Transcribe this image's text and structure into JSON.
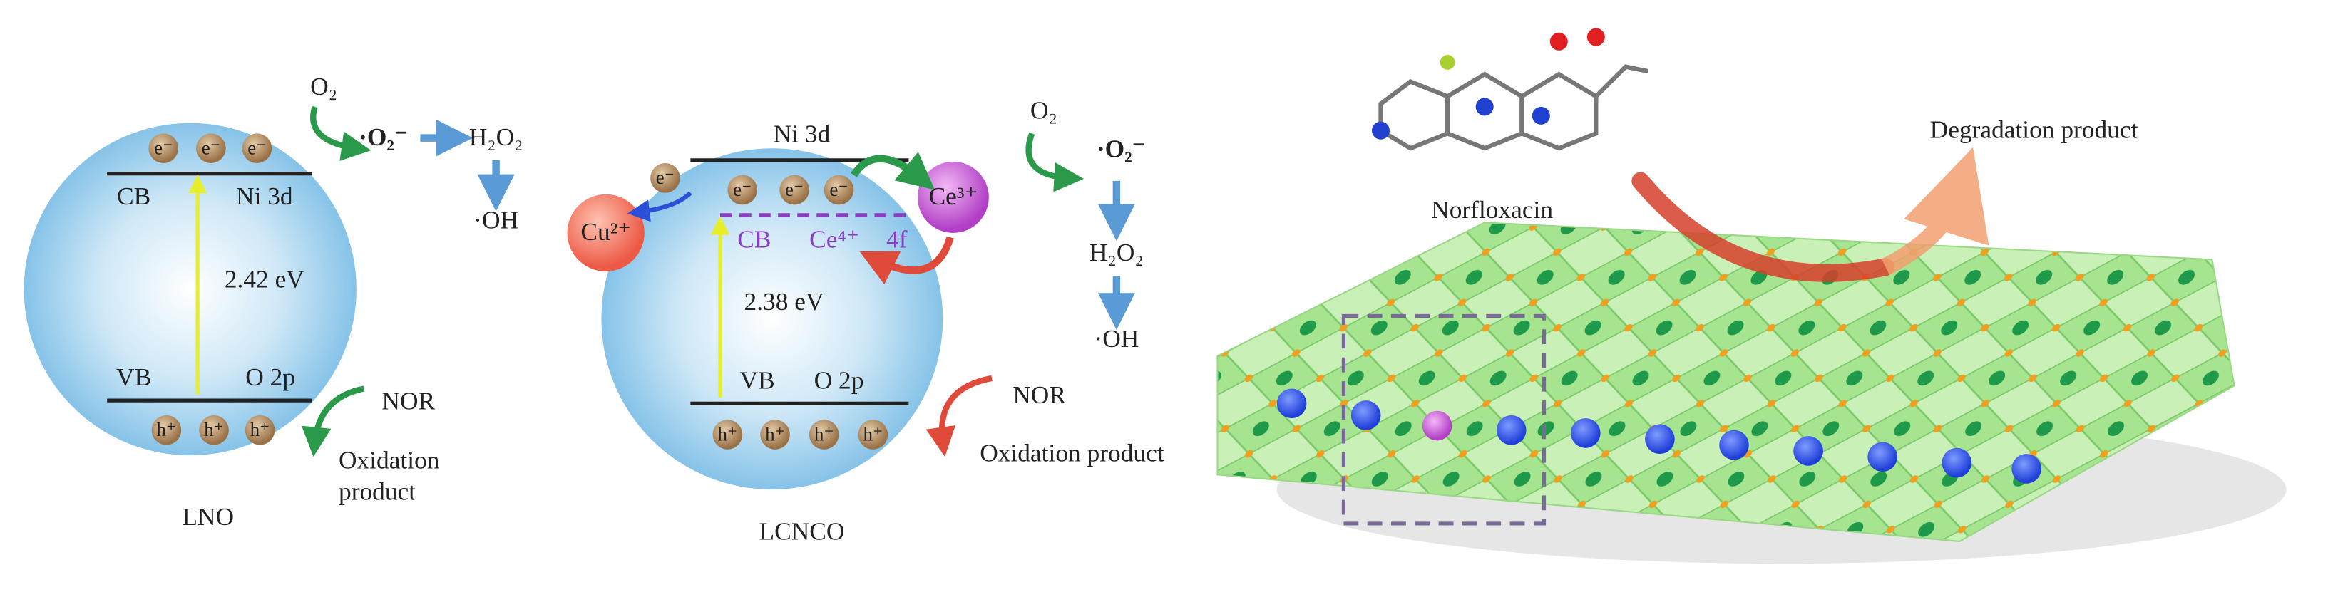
{
  "lno": {
    "o2": "O₂",
    "superoxide": "·O₂⁻",
    "h2o2": "H₂O₂",
    "oh": "·OH",
    "electrons": [
      "e⁻",
      "e⁻",
      "e⁻"
    ],
    "cb": "CB",
    "ni3d": "Ni 3d",
    "gap": "2.42 eV",
    "vb": "VB",
    "o2p": "O 2p",
    "holes": [
      "h⁺",
      "h⁺",
      "h⁺"
    ],
    "nor": "NOR",
    "oxidation": [
      "Oxidation",
      "product"
    ],
    "label": "LNO"
  },
  "lcnco": {
    "ni3d": "Ni 3d",
    "electrons": [
      "e⁻",
      "e⁻",
      "e⁻",
      "e⁻"
    ],
    "cu": "Cu²⁺",
    "ce3": "Ce³⁺",
    "cb": "CB",
    "ce4": "Ce⁴⁺",
    "f4": "4f",
    "gap": "2.38 eV",
    "vb": "VB",
    "o2p": "O 2p",
    "holes": [
      "h⁺",
      "h⁺",
      "h⁺",
      "h⁺"
    ],
    "o2": "O₂",
    "superoxide": "·O₂⁻",
    "h2o2": "H₂O₂",
    "oh": "·OH",
    "nor": "NOR",
    "oxidation": "Oxidation product",
    "label": "LCNCO"
  },
  "lattice": {
    "molecule": "Norfloxacin",
    "product": "Degradation product"
  }
}
